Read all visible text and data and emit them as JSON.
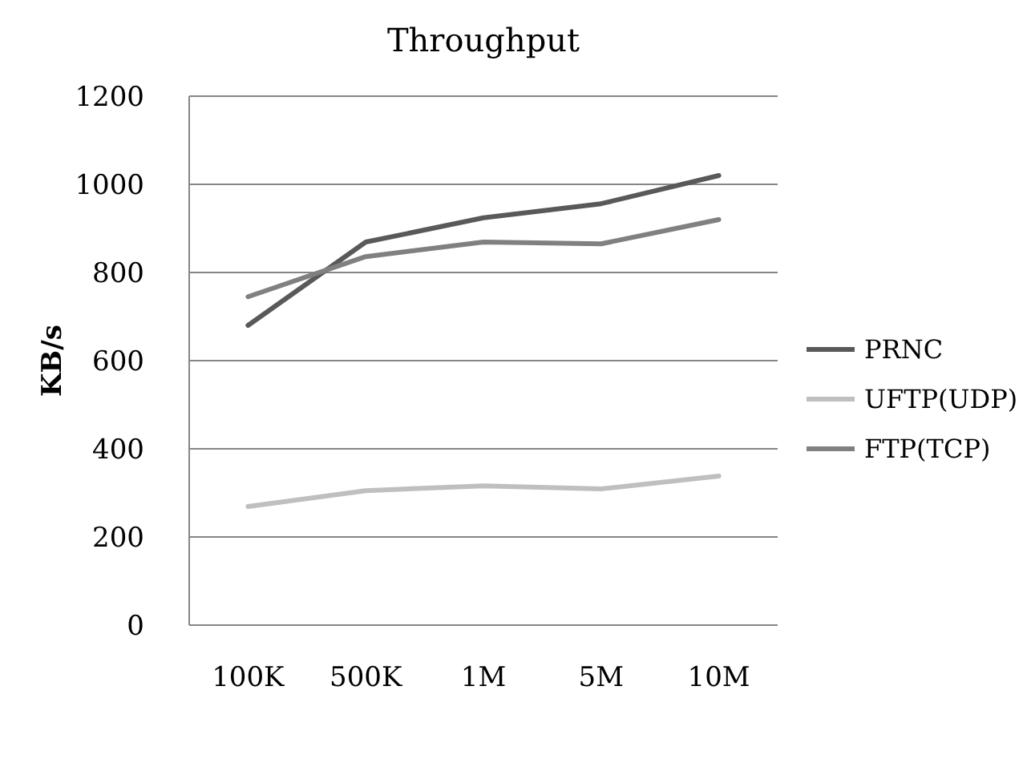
{
  "chart_data": {
    "type": "line",
    "title": "Throughput",
    "ylabel": "KB/s",
    "categories": [
      "100K",
      "500K",
      "1M",
      "5M",
      "10M"
    ],
    "series": [
      {
        "name": "PRNC",
        "color": "#595959",
        "values": [
          680,
          869,
          924,
          956,
          1020
        ]
      },
      {
        "name": "UFTP(UDP)",
        "color": "#bfbfbf",
        "values": [
          269,
          305,
          316,
          309,
          338
        ]
      },
      {
        "name": "FTP(TCP)",
        "color": "#808080",
        "values": [
          745,
          836,
          869,
          865,
          920
        ]
      }
    ],
    "ylim": [
      0,
      1200
    ],
    "yticks": [
      0,
      200,
      400,
      600,
      800,
      1000,
      1200
    ],
    "grid": "y",
    "legend": "right",
    "marker": "none",
    "line_style": "solid"
  }
}
